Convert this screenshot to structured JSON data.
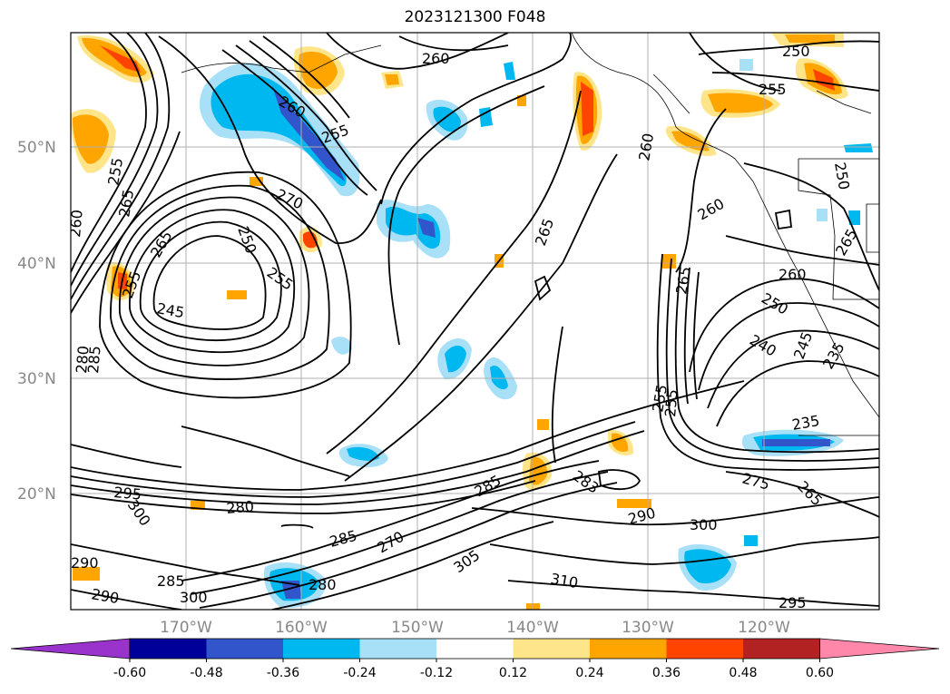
{
  "title": "2023121300 F048",
  "lat_labels": [
    "50°N",
    "40°N",
    "30°N",
    "20°N"
  ],
  "lon_labels": [
    "170°W",
    "160°W",
    "150°W",
    "140°W",
    "130°W",
    "120°W"
  ],
  "colorbar": {
    "ticks": [
      "-0.60",
      "-0.48",
      "-0.36",
      "-0.24",
      "-0.12",
      "0.12",
      "0.24",
      "0.36",
      "0.48",
      "0.60"
    ],
    "colors": [
      "#9933cc",
      "#000099",
      "#3355cc",
      "#00b8f0",
      "#a8e0f8",
      "#ffffff",
      "#ffe58a",
      "#ffa500",
      "#ff4400",
      "#b22222",
      "#ff88aa"
    ]
  },
  "contour_labels": [
    "260",
    "260",
    "255",
    "250",
    "255",
    "270",
    "250",
    "255",
    "245",
    "260",
    "265",
    "265",
    "260",
    "260",
    "265",
    "255",
    "250",
    "240",
    "245",
    "255",
    "235",
    "275",
    "265",
    "283",
    "290",
    "300",
    "310",
    "295",
    "305",
    "285",
    "270",
    "285",
    "280",
    "295",
    "300",
    "280",
    "285",
    "290",
    "300",
    "290",
    "280",
    "285",
    "255",
    "255",
    "260",
    "265",
    "265",
    "235",
    "250"
  ],
  "colors": {
    "contour": "#000000",
    "grid": "#b0b0b0",
    "axis_label": "#888888",
    "positive_light": "#ffe58a",
    "positive_mid": "#ffa500",
    "positive_strong": "#ff4400",
    "negative_light": "#a8e0f8",
    "negative_mid": "#00b8f0",
    "negative_strong": "#3355cc"
  }
}
